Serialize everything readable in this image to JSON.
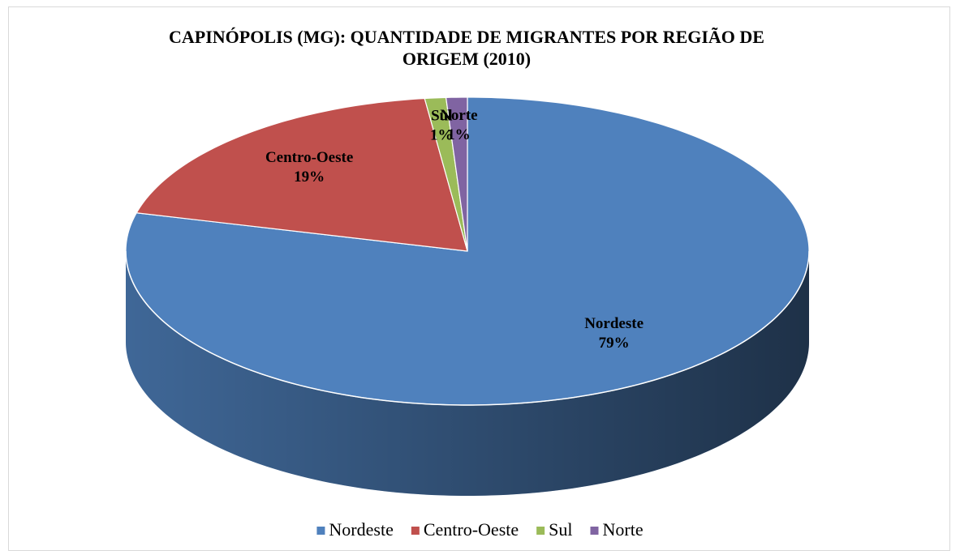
{
  "chart_data": {
    "type": "pie3d",
    "title": "CAPINÓPOLIS (MG): QUANTIDADE DE MIGRANTES POR REGIÃO DE ORIGEM (2010)",
    "categories": [
      "Nordeste",
      "Centro-Oeste",
      "Sul",
      "Norte"
    ],
    "values": [
      79,
      19,
      1,
      1
    ],
    "value_labels": [
      "79%",
      "19%",
      "1%",
      "1%"
    ],
    "colors": [
      "#4f81bd",
      "#c0504d",
      "#9bbb59",
      "#8064a2"
    ],
    "legend": "bottom"
  }
}
